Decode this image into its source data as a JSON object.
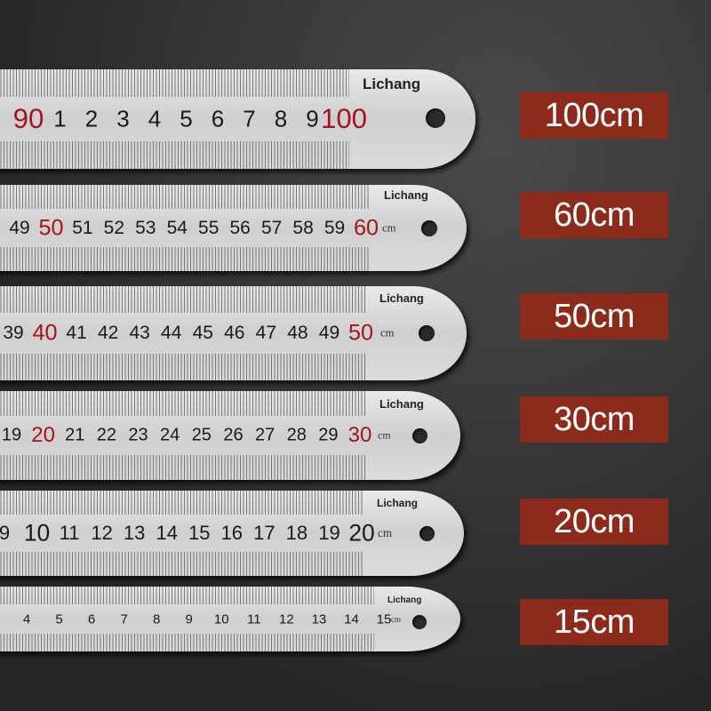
{
  "brand": "Lichang",
  "accent": "#8c2a1b",
  "rulers": [
    {
      "numbers": [
        "90",
        "1",
        "2",
        "3",
        "4",
        "5",
        "6",
        "7",
        "8",
        "9",
        "100"
      ],
      "red": [
        "90",
        "100"
      ],
      "unit": "",
      "label": "100cm"
    },
    {
      "numbers": [
        "49",
        "50",
        "51",
        "52",
        "53",
        "54",
        "55",
        "56",
        "57",
        "58",
        "59",
        "60"
      ],
      "red": [
        "50",
        "60"
      ],
      "unit": "cm",
      "label": "60cm"
    },
    {
      "numbers": [
        "39",
        "40",
        "41",
        "42",
        "43",
        "44",
        "45",
        "46",
        "47",
        "48",
        "49",
        "50"
      ],
      "red": [
        "40",
        "50"
      ],
      "unit": "cm",
      "label": "50cm"
    },
    {
      "numbers": [
        "19",
        "20",
        "21",
        "22",
        "23",
        "24",
        "25",
        "26",
        "27",
        "28",
        "29",
        "30"
      ],
      "red": [
        "20",
        "30"
      ],
      "unit": "cm",
      "label": "30cm"
    },
    {
      "numbers": [
        "9",
        "10",
        "11",
        "12",
        "13",
        "14",
        "15",
        "16",
        "17",
        "18",
        "19",
        "20"
      ],
      "red": [],
      "unit": "cm",
      "label": "20cm"
    },
    {
      "numbers": [
        "4",
        "5",
        "6",
        "7",
        "8",
        "9",
        "10",
        "11",
        "12",
        "13",
        "14",
        "15"
      ],
      "red": [],
      "unit": "cm",
      "label": "15cm"
    }
  ]
}
